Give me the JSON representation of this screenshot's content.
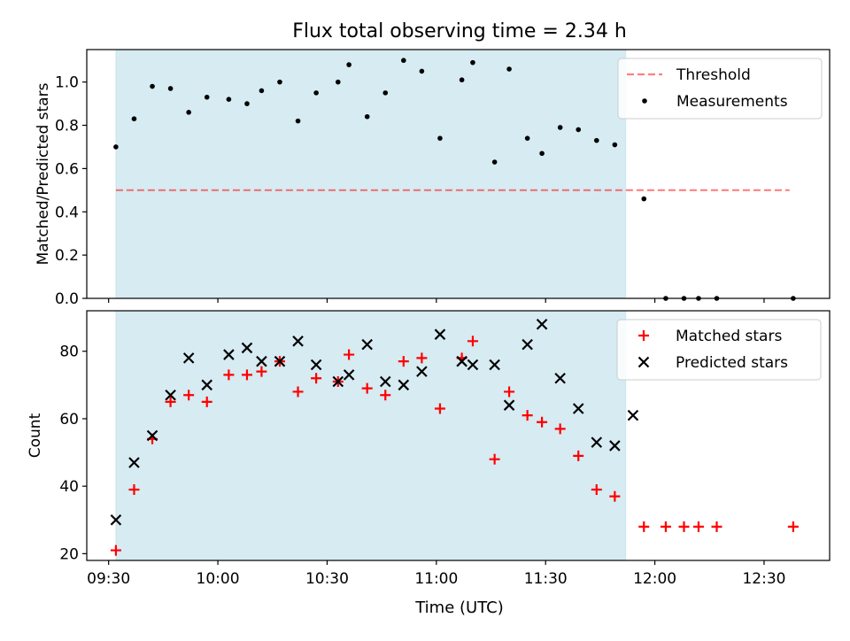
{
  "title": "Flux total observing time = 2.34 h",
  "colors": {
    "shade": "#add8e6",
    "threshold": "#ff0000",
    "measurements": "#000000",
    "matched": "#ff0000",
    "predicted": "#000000"
  },
  "shade_range_minutes": [
    572,
    712
  ],
  "x_axis": {
    "label": "Time (UTC)",
    "range_minutes": [
      564,
      768
    ],
    "ticks": [
      {
        "minutes": 570,
        "label": "09:30"
      },
      {
        "minutes": 600,
        "label": "10:00"
      },
      {
        "minutes": 630,
        "label": "10:30"
      },
      {
        "minutes": 660,
        "label": "11:00"
      },
      {
        "minutes": 690,
        "label": "11:30"
      },
      {
        "minutes": 720,
        "label": "12:00"
      },
      {
        "minutes": 750,
        "label": "12:30"
      }
    ]
  },
  "chart_data": [
    {
      "type": "scatter",
      "ylabel": "Matched/Predicted stars",
      "ylim": [
        0,
        1.15
      ],
      "yticks": [
        0.0,
        0.2,
        0.4,
        0.6,
        0.8,
        1.0
      ],
      "ytick_labels": [
        "0.0",
        "0.2",
        "0.4",
        "0.6",
        "0.8",
        "1.0"
      ],
      "legend_position": "top-right",
      "threshold": {
        "name": "Threshold",
        "y": 0.5,
        "x_range_minutes": [
          572,
          757
        ]
      },
      "series": [
        {
          "name": "Measurements",
          "x_minutes": [
            572,
            577,
            582,
            587,
            592,
            597,
            603,
            608,
            612,
            617,
            622,
            627,
            633,
            636,
            641,
            646,
            651,
            656,
            661,
            667,
            670,
            676,
            680,
            685,
            689,
            694,
            699,
            704,
            709,
            717,
            723,
            728,
            732,
            737,
            758
          ],
          "y": [
            0.7,
            0.83,
            0.98,
            0.97,
            0.86,
            0.93,
            0.92,
            0.9,
            0.96,
            1.0,
            0.82,
            0.95,
            1.0,
            1.08,
            0.84,
            0.95,
            1.1,
            1.05,
            0.74,
            1.01,
            1.09,
            0.63,
            1.06,
            0.74,
            0.67,
            0.79,
            0.78,
            0.73,
            0.71,
            0.46,
            0.0,
            0.0,
            0.0,
            0.0,
            0.0
          ]
        }
      ]
    },
    {
      "type": "scatter",
      "ylabel": "Count",
      "ylim": [
        18,
        92
      ],
      "yticks": [
        20,
        40,
        60,
        80
      ],
      "ytick_labels": [
        "20",
        "40",
        "60",
        "80"
      ],
      "legend_position": "top-right",
      "series": [
        {
          "name": "Matched stars",
          "x_minutes": [
            572,
            577,
            582,
            587,
            592,
            597,
            603,
            608,
            612,
            617,
            622,
            627,
            633,
            636,
            641,
            646,
            651,
            656,
            661,
            667,
            670,
            676,
            680,
            685,
            689,
            694,
            699,
            704,
            709,
            717,
            723,
            728,
            732,
            737,
            758
          ],
          "y": [
            21,
            39,
            54,
            65,
            67,
            65,
            73,
            73,
            74,
            77,
            68,
            72,
            71,
            79,
            69,
            67,
            77,
            78,
            63,
            78,
            83,
            48,
            68,
            61,
            59,
            57,
            49,
            39,
            37,
            28,
            28,
            28,
            28,
            28,
            28
          ]
        },
        {
          "name": "Predicted stars",
          "x_minutes": [
            572,
            577,
            582,
            587,
            592,
            597,
            603,
            608,
            612,
            617,
            622,
            627,
            633,
            636,
            641,
            646,
            651,
            656,
            661,
            667,
            670,
            676,
            680,
            685,
            689,
            694,
            699,
            704,
            709,
            714
          ],
          "y": [
            30,
            47,
            55,
            67,
            78,
            70,
            79,
            81,
            77,
            77,
            83,
            76,
            71,
            73,
            82,
            71,
            70,
            74,
            85,
            77,
            76,
            76,
            64,
            82,
            88,
            72,
            63,
            53,
            52,
            61
          ]
        }
      ]
    }
  ]
}
